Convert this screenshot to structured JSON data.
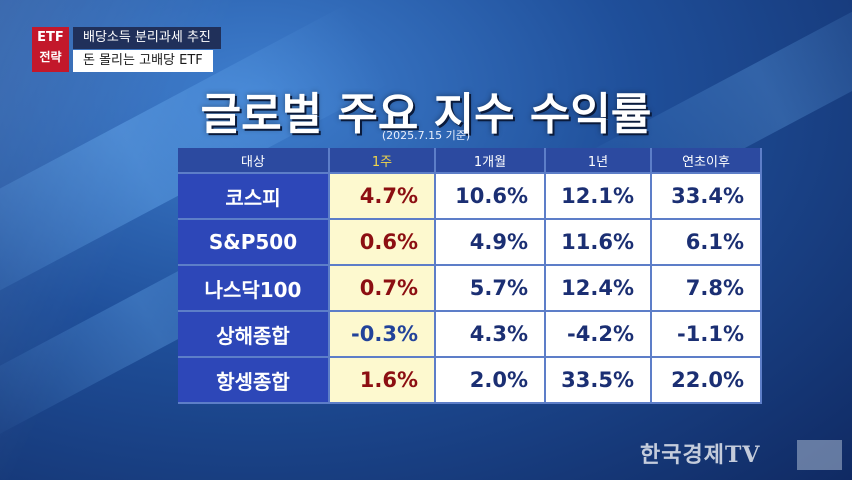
{
  "badge": {
    "line1": "ETF",
    "line2": "전략"
  },
  "tagline": {
    "line1": "배당소득 분리과세 추진",
    "line2": "돈 몰리는 고배당 ETF"
  },
  "title": "글로벌 주요 지수 수익률",
  "date_note": "(2025.7.15 기준)",
  "table": {
    "headers": [
      "대상",
      "1주",
      "1개월",
      "1년",
      "연초이후"
    ],
    "rows": [
      {
        "name": "코스피",
        "w1": "4.7%",
        "m1": "10.6%",
        "y1": "12.1%",
        "ytd": "33.4%"
      },
      {
        "name": "S&P500",
        "w1": "0.6%",
        "m1": "4.9%",
        "y1": "11.6%",
        "ytd": "6.1%"
      },
      {
        "name": "나스닥100",
        "w1": "0.7%",
        "m1": "5.7%",
        "y1": "12.4%",
        "ytd": "7.8%"
      },
      {
        "name": "상해종합",
        "w1": "-0.3%",
        "m1": "4.3%",
        "y1": "-4.2%",
        "ytd": "-1.1%"
      },
      {
        "name": "항셍종합",
        "w1": "1.6%",
        "m1": "2.0%",
        "y1": "33.5%",
        "ytd": "22.0%"
      }
    ]
  },
  "logo": "한국경제TV",
  "colors": {
    "header_bg": "#2c4aa0",
    "label_bg": "#2d47b8",
    "week_bg": "#fdf9cf",
    "positive_week": "#8c0f12",
    "value_text": "#1b2f73",
    "badge_red": "#c3182b"
  }
}
